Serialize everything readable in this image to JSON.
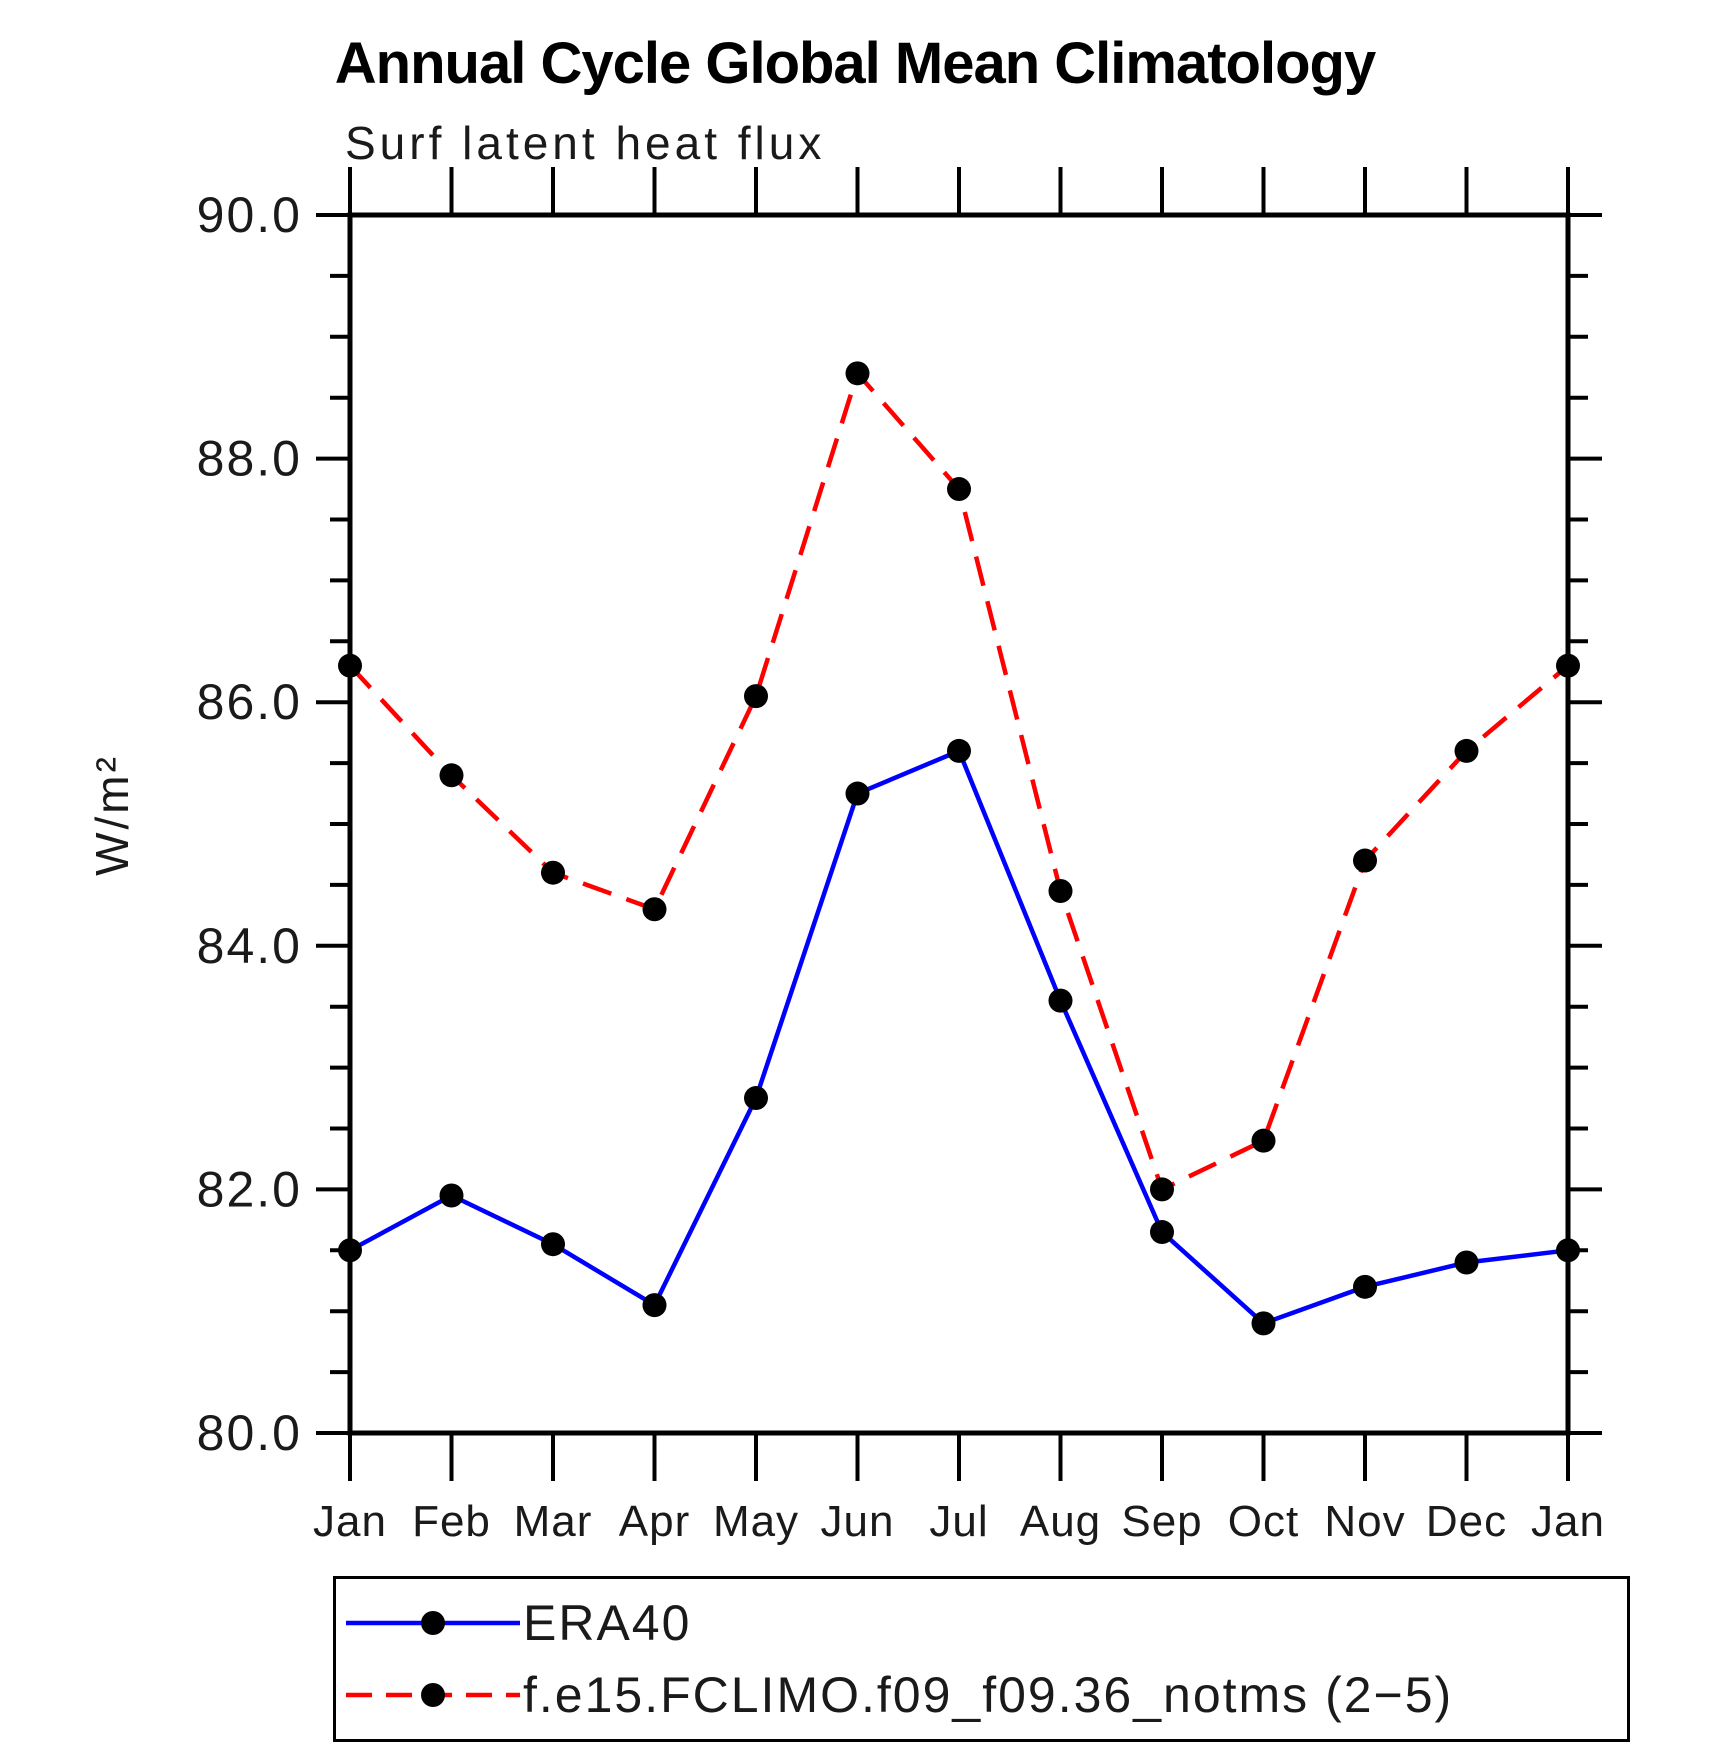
{
  "chart_data": {
    "type": "line",
    "title": "Annual Cycle Global Mean Climatology",
    "subtitle": "Surf latent heat flux",
    "ylabel": "W/m²",
    "xlabel": "",
    "categories": [
      "Jan",
      "Feb",
      "Mar",
      "Apr",
      "May",
      "Jun",
      "Jul",
      "Aug",
      "Sep",
      "Oct",
      "Nov",
      "Dec",
      "Jan"
    ],
    "ylim": [
      80.0,
      90.0
    ],
    "y_major_ticks": [
      80.0,
      82.0,
      84.0,
      86.0,
      88.0,
      90.0
    ],
    "y_tick_labels": [
      "80.0",
      "82.0",
      "84.0",
      "86.0",
      "88.0",
      "90.0"
    ],
    "y_minor_step": 0.5,
    "grid": false,
    "legend_position": "bottom",
    "axis_color": "#000000",
    "marker": "filled-circle",
    "series": [
      {
        "name": "ERA40",
        "color": "#0000ff",
        "style": "solid",
        "marker_color": "#000000",
        "values": [
          81.5,
          81.95,
          81.55,
          81.05,
          82.75,
          85.25,
          85.6,
          83.55,
          81.65,
          80.9,
          81.2,
          81.4,
          81.5
        ]
      },
      {
        "name": "f.e15.FCLIMO.f09_f09.36_notms (2−5)",
        "color": "#ff0000",
        "style": "dashed",
        "marker_color": "#000000",
        "values": [
          86.3,
          85.4,
          84.6,
          84.3,
          86.05,
          88.7,
          87.75,
          84.45,
          82.0,
          82.4,
          84.7,
          85.6,
          86.3
        ]
      }
    ]
  }
}
